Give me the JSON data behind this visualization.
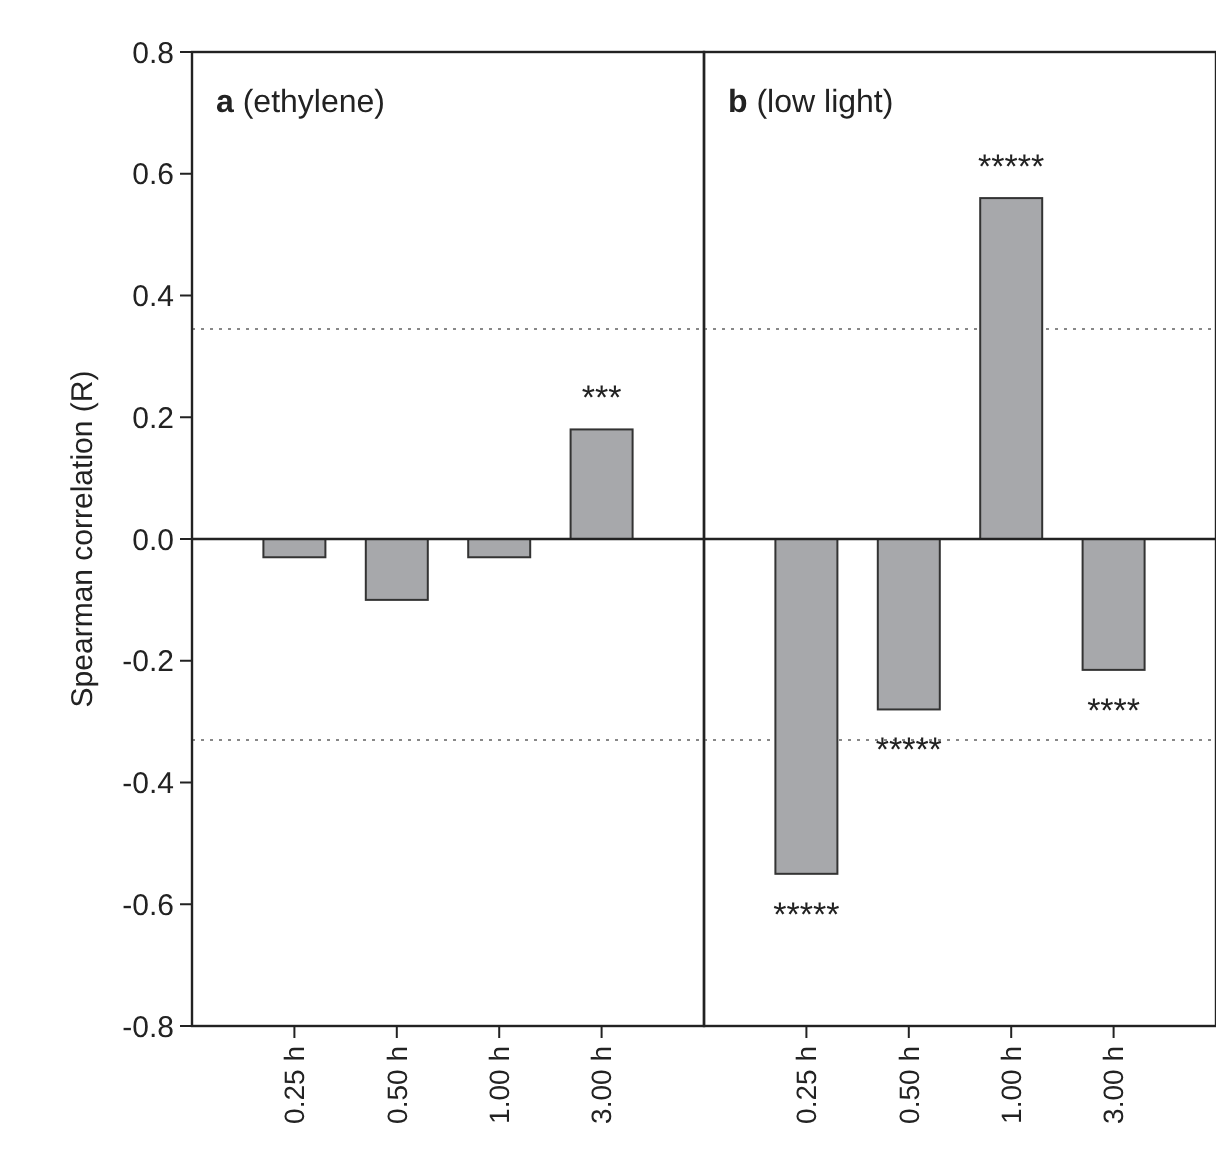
{
  "chart_data": [
    {
      "type": "bar",
      "title": "a (ethylene)",
      "ylabel": "Spearman correlation (R)",
      "categories": [
        "0.25 h",
        "0.50 h",
        "1.00 h",
        "3.00 h"
      ],
      "values": [
        -0.03,
        -0.1,
        -0.03,
        0.18
      ],
      "color": "#a7a8ab",
      "ylim": [
        -0.8,
        0.8
      ],
      "yticks": [
        {
          "value": -0.8,
          "label": "-0.8"
        },
        {
          "value": -0.6,
          "label": "-0.6"
        },
        {
          "value": -0.4,
          "label": "-0.4"
        },
        {
          "value": -0.2,
          "label": "-0.2"
        },
        {
          "value": 0,
          "label": "0.0"
        },
        {
          "value": 0.2,
          "label": "0.2"
        },
        {
          "value": 0.4,
          "label": "0.4"
        },
        {
          "value": 0.6,
          "label": "0.6"
        },
        {
          "value": 0.8,
          "label": "0.8"
        }
      ],
      "ref_lines": [
        {
          "axis": "y",
          "value": 0.345,
          "line_style": "dotted",
          "color": "#888888"
        },
        {
          "axis": "y",
          "value": -0.33,
          "line_style": "dotted",
          "color": "#888888"
        }
      ],
      "annotations": [
        {
          "text": "***",
          "x": "3.00 h",
          "y": 0.18
        }
      ]
    },
    {
      "type": "bar",
      "title": "b (low light)",
      "categories": [
        "0.25 h",
        "0.50 h",
        "1.00 h",
        "3.00 h"
      ],
      "values": [
        -0.55,
        -0.28,
        0.56,
        -0.215
      ],
      "color": "#a7a8ab",
      "ylim": [
        -0.8,
        0.8
      ],
      "tick_labels": "x",
      "ref_lines": [
        {
          "axis": "y",
          "value": 0.345,
          "line_style": "dotted",
          "color": "#888888"
        },
        {
          "axis": "y",
          "value": -0.33,
          "line_style": "dotted",
          "color": "#888888"
        }
      ],
      "annotations": [
        {
          "text": "*****",
          "x": "0.25 h",
          "y": -0.55
        },
        {
          "text": "*****",
          "x": "0.50 h",
          "y": -0.28
        },
        {
          "text": "*****",
          "x": "1.00 h",
          "y": 0.56
        },
        {
          "text": "****",
          "x": "3.00 h",
          "y": -0.215
        }
      ]
    }
  ]
}
